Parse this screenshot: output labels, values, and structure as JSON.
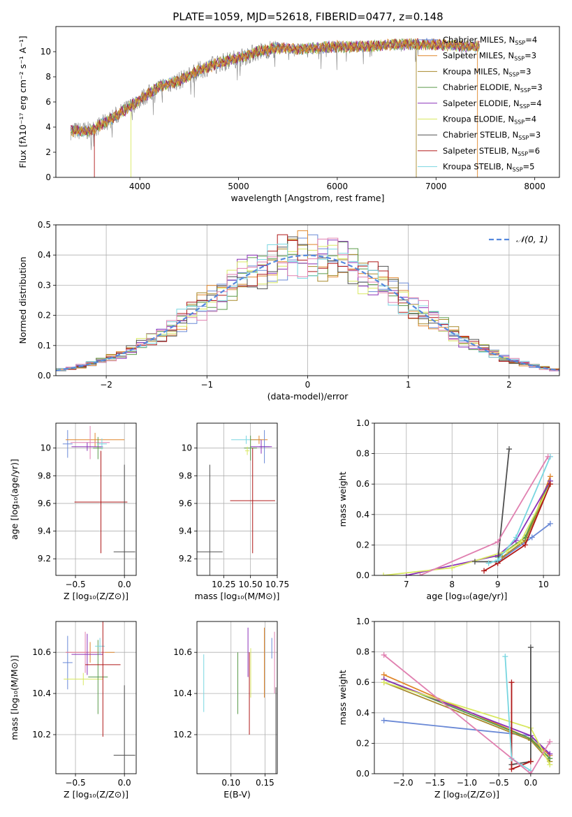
{
  "figure_title": "PLATE=1059, MJD=52618, FIBERID=0477, z=0.148",
  "colors": {
    "Chabrier MILES": "#6a89d6",
    "Salpeter MILES": "#e0862a",
    "Kroupa MILES": "#a88a2c",
    "Chabrier ELODIE": "#5a9a4a",
    "Salpeter ELODIE": "#8a30b8",
    "Kroupa ELODIE": "#d8e860",
    "Chabrier STELIB": "#505050",
    "Salpeter STELIB": "#b01818",
    "Kroupa STELIB": "#78d6e0",
    "pink": "#e080b0",
    "grey_spectrum": "#808080",
    "normal_curve": "#5588dd"
  },
  "chart_data": [
    {
      "id": "spectrum",
      "type": "line",
      "xlabel": "wavelength [Angstrom, rest frame]",
      "ylabel": "Flux [fλ10⁻¹⁷ erg cm⁻² s⁻¹ A⁻¹]",
      "xlim": [
        3150,
        8250
      ],
      "ylim": [
        0,
        12
      ],
      "xticks": [
        4000,
        5000,
        6000,
        7000,
        8000
      ],
      "yticks": [
        0,
        2,
        4,
        6,
        8,
        10
      ],
      "grid": false,
      "legend_position": "top-right",
      "legend": [
        {
          "label": "Chabrier MILES, N",
          "sub": "SSP",
          "tail": "=4",
          "color": "#6a89d6"
        },
        {
          "label": "Salpeter MILES, N",
          "sub": "SSP",
          "tail": "=3",
          "color": "#e0862a"
        },
        {
          "label": "Kroupa MILES, N",
          "sub": "SSP",
          "tail": "=3",
          "color": "#a88a2c"
        },
        {
          "label": "Chabrier ELODIE, N",
          "sub": "SSP",
          "tail": "=3",
          "color": "#5a9a4a"
        },
        {
          "label": "Salpeter ELODIE, N",
          "sub": "SSP",
          "tail": "=4",
          "color": "#8a30b8"
        },
        {
          "label": "Kroupa ELODIE, N",
          "sub": "SSP",
          "tail": "=4",
          "color": "#d8e860"
        },
        {
          "label": "Chabrier STELIB, N",
          "sub": "SSP",
          "tail": "=3",
          "color": "#505050"
        },
        {
          "label": "Salpeter STELIB, N",
          "sub": "SSP",
          "tail": "=6",
          "color": "#b01818"
        },
        {
          "label": "Kroupa STELIB, N",
          "sub": "SSP",
          "tail": "=5",
          "color": "#78d6e0"
        }
      ],
      "continuum": {
        "x": [
          3300,
          3500,
          3700,
          3900,
          4000,
          4200,
          4400,
          4600,
          4800,
          5000,
          5200,
          5400,
          5600,
          5800,
          6000,
          6200,
          6400,
          6600,
          6800,
          7000,
          7200,
          7400
        ],
        "y": [
          3.7,
          3.7,
          4.6,
          5.6,
          6.2,
          7.2,
          7.7,
          8.5,
          9.1,
          9.5,
          10.0,
          10.3,
          10.2,
          10.3,
          10.4,
          10.4,
          10.45,
          10.6,
          10.6,
          10.55,
          10.5,
          10.4
        ]
      },
      "model_drops": [
        {
          "series": "Salpeter STELIB",
          "x": 3540
        },
        {
          "series": "Kroupa ELODIE",
          "x": 3910
        },
        {
          "series": "Chabrier STELIB",
          "x": 6340
        },
        {
          "series": "Kroupa MILES",
          "x": 6800
        },
        {
          "series": "Salpeter MILES",
          "x": 7420
        }
      ]
    },
    {
      "id": "residuals",
      "type": "histogram",
      "xlabel": "(data-model)/error",
      "ylabel": "Normed distribution",
      "xlim": [
        -2.5,
        2.5
      ],
      "ylim": [
        0,
        0.5
      ],
      "xticks": [
        -2,
        -1,
        0,
        1,
        2
      ],
      "xticklabels": [
        "−2",
        "−1",
        "0",
        "1",
        "2"
      ],
      "yticks": [
        0.0,
        0.1,
        0.2,
        0.3,
        0.4,
        0.5
      ],
      "grid": true,
      "legend_position": "top-right",
      "legend": [
        {
          "label": "𝒩(0, 1)",
          "style": "dashed"
        }
      ],
      "bin_width": 0.1,
      "series_offsets": {
        "Chabrier MILES": 0.3,
        "Salpeter MILES": 0.7,
        "Kroupa MILES": 1.1,
        "Chabrier ELODIE": 1.5,
        "Salpeter ELODIE": 1.9,
        "Kroupa ELODIE": 2.3,
        "Chabrier STELIB": 2.7,
        "Salpeter STELIB": 3.1,
        "Kroupa STELIB": 3.5,
        "pink": 3.9
      }
    },
    {
      "id": "age-vs-Z",
      "type": "errorbar",
      "xlabel": "Z [log₁₀(Z/Z⊙)]",
      "ylabel": "age  [log₁₀(age/yr)]",
      "xlim": [
        -0.7,
        0.12
      ],
      "ylim": [
        9.08,
        10.18
      ],
      "xticks": [
        -0.5,
        0.0
      ],
      "xticklabels": [
        "−0.5",
        "0.0"
      ],
      "yticks": [
        9.2,
        9.4,
        9.6,
        9.8,
        10.0
      ],
      "grid": true,
      "points": [
        {
          "series": "Chabrier MILES",
          "x": -0.58,
          "xerr": 0.05,
          "y": 10.03,
          "yerr": 0.1
        },
        {
          "series": "Salpeter MILES",
          "x": -0.3,
          "xerr": 0.3,
          "y": 10.06,
          "yerr": 0.05
        },
        {
          "series": "pink",
          "x": -0.35,
          "xerr": 0.2,
          "y": 10.04,
          "yerr": 0.12
        },
        {
          "series": "Salpeter ELODIE",
          "x": -0.38,
          "xerr": 0.16,
          "y": 10.01,
          "yerr": 0.03
        },
        {
          "series": "Chabrier ELODIE",
          "x": -0.27,
          "xerr": 0.05,
          "y": 10.0,
          "yerr": 0.08
        },
        {
          "series": "Kroupa STELIB",
          "x": -0.23,
          "xerr": 0.05,
          "y": 10.03,
          "yerr": 0.04
        },
        {
          "series": "Salpeter STELIB",
          "x": -0.24,
          "xerr": 0.27,
          "y": 9.61,
          "yerr": 0.37
        },
        {
          "series": "Chabrier STELIB",
          "x": 0.0,
          "xerr": 0.11,
          "y": 9.25,
          "yerr": 0.63
        }
      ]
    },
    {
      "id": "age-vs-mass",
      "type": "errorbar",
      "xlabel": "mass [log₁₀(M/M⊙)]",
      "ylabel": "",
      "xlim": [
        10.0,
        10.75
      ],
      "ylim": [
        9.08,
        10.18
      ],
      "xticks": [
        10.25,
        10.5,
        10.75
      ],
      "xticklabels": [
        "10.25",
        "10.50",
        "10.75"
      ],
      "yticks": [
        9.2,
        9.4,
        9.6,
        9.8,
        10.0
      ],
      "grid": true,
      "points": [
        {
          "series": "Kroupa STELIB",
          "x": 10.46,
          "xerr": 0.14,
          "y": 10.06,
          "yerr": 0.03
        },
        {
          "series": "Salpeter MILES",
          "x": 10.58,
          "xerr": 0.08,
          "y": 10.06,
          "yerr": 0.03
        },
        {
          "series": "Chabrier MILES",
          "x": 10.63,
          "xerr": 0.05,
          "y": 10.01,
          "yerr": 0.12
        },
        {
          "series": "Salpeter ELODIE",
          "x": 10.6,
          "xerr": 0.1,
          "y": 10.01,
          "yerr": 0.05
        },
        {
          "series": "Chabrier ELODIE",
          "x": 10.5,
          "xerr": 0.06,
          "y": 10.0,
          "yerr": 0.09
        },
        {
          "series": "Kroupa ELODIE",
          "x": 10.47,
          "xerr": 0.02,
          "y": 9.98,
          "yerr": 0.03
        },
        {
          "series": "Salpeter STELIB",
          "x": 10.52,
          "xerr": 0.21,
          "y": 9.62,
          "yerr": 0.38
        },
        {
          "series": "Chabrier STELIB",
          "x": 10.12,
          "xerr": 0.12,
          "y": 9.25,
          "yerr": 0.63
        }
      ]
    },
    {
      "id": "massweight-vs-age",
      "type": "line",
      "xlabel": "age  [log₁₀(age/yr)]",
      "ylabel": "mass weight",
      "xlim": [
        6.3,
        10.35
      ],
      "ylim": [
        0,
        1
      ],
      "xticks": [
        7,
        8,
        9,
        10
      ],
      "yticks": [
        0.0,
        0.2,
        0.4,
        0.6,
        0.8,
        1.0
      ],
      "grid": true,
      "series": [
        {
          "name": "Chabrier MILES",
          "x": [
            9.0,
            9.75,
            10.15
          ],
          "y": [
            0.09,
            0.25,
            0.34
          ]
        },
        {
          "name": "Salpeter MILES",
          "x": [
            9.1,
            9.6,
            10.15
          ],
          "y": [
            0.12,
            0.23,
            0.65
          ]
        },
        {
          "name": "Kroupa MILES",
          "x": [
            9.1,
            9.6,
            10.15
          ],
          "y": [
            0.12,
            0.23,
            0.6
          ]
        },
        {
          "name": "Chabrier ELODIE",
          "x": [
            9.0,
            9.6,
            10.15
          ],
          "y": [
            0.12,
            0.25,
            0.62
          ]
        },
        {
          "name": "Salpeter ELODIE",
          "x": [
            7.0,
            9.0,
            9.4,
            10.15
          ],
          "y": [
            0.0,
            0.13,
            0.23,
            0.62
          ]
        },
        {
          "name": "Kroupa ELODIE",
          "x": [
            6.5,
            8.0,
            9.2,
            9.5,
            10.15
          ],
          "y": [
            0.0,
            0.05,
            0.16,
            0.22,
            0.6
          ]
        },
        {
          "name": "Chabrier STELIB",
          "x": [
            8.5,
            9.0,
            9.25
          ],
          "y": [
            0.09,
            0.09,
            0.83
          ]
        },
        {
          "name": "Salpeter STELIB",
          "x": [
            8.7,
            9.0,
            9.6,
            10.15
          ],
          "y": [
            0.03,
            0.08,
            0.2,
            0.6
          ]
        },
        {
          "name": "Kroupa STELIB",
          "x": [
            8.8,
            9.0,
            9.4,
            10.15
          ],
          "y": [
            0.08,
            0.1,
            0.25,
            0.78
          ]
        },
        {
          "name": "pink",
          "x": [
            7.3,
            9.0,
            10.1
          ],
          "y": [
            0.0,
            0.22,
            0.78
          ]
        }
      ]
    },
    {
      "id": "mass-vs-Z",
      "type": "errorbar",
      "xlabel": "Z [log₁₀(Z/Z⊙)]",
      "ylabel": "mass [log₁₀(M/M⊙)]",
      "xlim": [
        -0.7,
        0.12
      ],
      "ylim": [
        10.01,
        10.75
      ],
      "xticks": [
        -0.5,
        0.0
      ],
      "xticklabels": [
        "−0.5",
        "0.0"
      ],
      "yticks": [
        10.2,
        10.4,
        10.6
      ],
      "grid": true,
      "points": [
        {
          "series": "Chabrier MILES",
          "x": -0.58,
          "xerr": 0.05,
          "y": 10.55,
          "yerr": 0.13
        },
        {
          "series": "Salpeter MILES",
          "x": -0.35,
          "xerr": 0.25,
          "y": 10.6,
          "yerr": 0.05
        },
        {
          "series": "pink",
          "x": -0.4,
          "xerr": 0.2,
          "y": 10.6,
          "yerr": 0.1
        },
        {
          "series": "Salpeter ELODIE",
          "x": -0.38,
          "xerr": 0.16,
          "y": 10.59,
          "yerr": 0.1
        },
        {
          "series": "Kroupa ELODIE",
          "x": -0.42,
          "xerr": 0.2,
          "y": 10.47,
          "yerr": 0.03
        },
        {
          "series": "Chabrier ELODIE",
          "x": -0.27,
          "xerr": 0.1,
          "y": 10.48,
          "yerr": 0.18
        },
        {
          "series": "Kroupa STELIB",
          "x": -0.25,
          "xerr": 0.05,
          "y": 10.63,
          "yerr": 0.04
        },
        {
          "series": "Salpeter STELIB",
          "x": -0.22,
          "xerr": 0.18,
          "y": 10.54,
          "yerr": 0.35
        },
        {
          "series": "Chabrier STELIB",
          "x": 0.0,
          "xerr": 0.11,
          "y": 10.1,
          "yerr": 0.34
        }
      ]
    },
    {
      "id": "mass-vs-ebv",
      "type": "errorbar",
      "xlabel": "E(B-V)",
      "ylabel": "",
      "xlim": [
        0.05,
        0.168
      ],
      "ylim": [
        10.01,
        10.75
      ],
      "xticks": [
        0.1,
        0.15
      ],
      "xticklabels": [
        "0.10",
        "0.15"
      ],
      "yticks": [
        10.2,
        10.4,
        10.6
      ],
      "grid": true,
      "points": [
        {
          "series": "Kroupa STELIB",
          "x": 0.06,
          "xerr": 0.0,
          "y": 10.45,
          "yerr": 0.14
        },
        {
          "series": "Chabrier ELODIE",
          "x": 0.11,
          "xerr": 0.0,
          "y": 10.45,
          "yerr": 0.15
        },
        {
          "series": "Salpeter ELODIE",
          "x": 0.125,
          "xerr": 0.0,
          "y": 10.6,
          "yerr": 0.12
        },
        {
          "series": "Kroupa ELODIE",
          "x": 0.129,
          "xerr": 0.0,
          "y": 10.5,
          "yerr": 0.12
        },
        {
          "series": "Salpeter STELIB",
          "x": 0.127,
          "xerr": 0.0,
          "y": 10.4,
          "yerr": 0.2
        },
        {
          "series": "Salpeter MILES",
          "x": 0.149,
          "xerr": 0.0,
          "y": 10.55,
          "yerr": 0.17
        },
        {
          "series": "Chabrier MILES",
          "x": 0.16,
          "xerr": 0.0,
          "y": 10.62,
          "yerr": 0.05
        },
        {
          "series": "pink",
          "x": 0.164,
          "xerr": 0.0,
          "y": 10.55,
          "yerr": 0.15
        },
        {
          "series": "Chabrier STELIB",
          "x": 0.166,
          "xerr": 0.0,
          "y": 10.2,
          "yerr": 0.23
        }
      ]
    },
    {
      "id": "massweight-vs-Z",
      "type": "line",
      "xlabel": "Z [log₁₀(Z/Z⊙)]",
      "ylabel": "mass weight",
      "xlim": [
        -2.45,
        0.45
      ],
      "ylim": [
        0,
        1
      ],
      "xticks": [
        -2.0,
        -1.5,
        -1.0,
        -0.5,
        0.0
      ],
      "xticklabels": [
        "−2.0",
        "−1.5",
        "−1.0",
        "−0.5",
        "0.0"
      ],
      "yticks": [
        0.0,
        0.2,
        0.4,
        0.6,
        0.8,
        1.0
      ],
      "grid": true,
      "series": [
        {
          "name": "Chabrier MILES",
          "x": [
            -2.3,
            0.0,
            0.3
          ],
          "y": [
            0.35,
            0.25,
            0.12
          ]
        },
        {
          "name": "Salpeter MILES",
          "x": [
            -2.3,
            0.0,
            0.3
          ],
          "y": [
            0.65,
            0.23,
            0.12
          ]
        },
        {
          "name": "Kroupa MILES",
          "x": [
            -2.3,
            0.0,
            0.3
          ],
          "y": [
            0.6,
            0.22,
            0.08
          ]
        },
        {
          "name": "Chabrier ELODIE",
          "x": [
            -2.3,
            0.0,
            0.3
          ],
          "y": [
            0.62,
            0.23,
            0.1
          ]
        },
        {
          "name": "Salpeter ELODIE",
          "x": [
            -2.3,
            0.0,
            0.3
          ],
          "y": [
            0.62,
            0.25,
            0.13
          ]
        },
        {
          "name": "Kroupa ELODIE",
          "x": [
            -2.3,
            0.0,
            0.3
          ],
          "y": [
            0.6,
            0.3,
            0.06
          ]
        },
        {
          "name": "Chabrier STELIB",
          "x": [
            -0.3,
            0.0,
            0.0
          ],
          "y": [
            0.06,
            0.08,
            0.83
          ]
        },
        {
          "name": "Salpeter STELIB",
          "x": [
            -0.3,
            -0.3,
            0.0
          ],
          "y": [
            0.6,
            0.03,
            0.08
          ]
        },
        {
          "name": "Kroupa STELIB",
          "x": [
            -0.4,
            -0.3,
            0.0
          ],
          "y": [
            0.77,
            0.1,
            0.02
          ]
        },
        {
          "name": "pink",
          "x": [
            -2.3,
            0.0,
            0.3
          ],
          "y": [
            0.78,
            0.0,
            0.21
          ]
        }
      ]
    }
  ]
}
